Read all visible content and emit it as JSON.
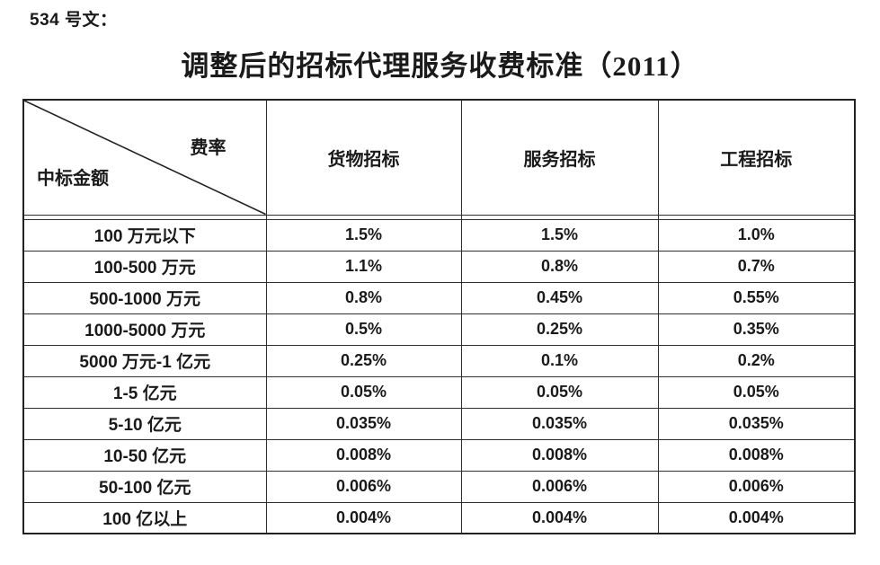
{
  "doc": {
    "ref_label": "534 号文：",
    "title": "调整后的招标代理服务收费标准（2011）"
  },
  "table": {
    "corner": {
      "top_right": "费率",
      "bottom_left": "中标金额"
    },
    "columns": [
      "货物招标",
      "服务招标",
      "工程招标"
    ],
    "rows": [
      {
        "range": "100 万元以下",
        "values": [
          "1.5%",
          "1.5%",
          "1.0%"
        ]
      },
      {
        "range": "100-500 万元",
        "values": [
          "1.1%",
          "0.8%",
          "0.7%"
        ]
      },
      {
        "range": "500-1000 万元",
        "values": [
          "0.8%",
          "0.45%",
          "0.55%"
        ]
      },
      {
        "range": "1000-5000 万元",
        "values": [
          "0.5%",
          "0.25%",
          "0.35%"
        ]
      },
      {
        "range": "5000 万元-1 亿元",
        "values": [
          "0.25%",
          "0.1%",
          "0.2%"
        ]
      },
      {
        "range": "1-5 亿元",
        "values": [
          "0.05%",
          "0.05%",
          "0.05%"
        ]
      },
      {
        "range": "5-10 亿元",
        "values": [
          "0.035%",
          "0.035%",
          "0.035%"
        ]
      },
      {
        "range": "10-50 亿元",
        "values": [
          "0.008%",
          "0.008%",
          "0.008%"
        ]
      },
      {
        "range": "50-100 亿元",
        "values": [
          "0.006%",
          "0.006%",
          "0.006%"
        ]
      },
      {
        "range": "100 亿以上",
        "values": [
          "0.004%",
          "0.004%",
          "0.004%"
        ]
      }
    ]
  }
}
